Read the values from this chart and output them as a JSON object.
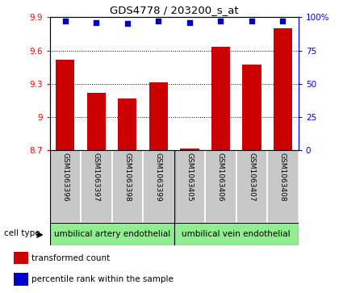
{
  "title": "GDS4778 / 203200_s_at",
  "samples": [
    "GSM1063396",
    "GSM1063397",
    "GSM1063398",
    "GSM1063399",
    "GSM1063405",
    "GSM1063406",
    "GSM1063407",
    "GSM1063408"
  ],
  "bar_values": [
    9.52,
    9.22,
    9.17,
    9.31,
    8.72,
    9.63,
    9.47,
    9.8
  ],
  "percentile_values": [
    97,
    96,
    95.5,
    97,
    96,
    97,
    97,
    97
  ],
  "bar_color": "#cc0000",
  "dot_color": "#0000cc",
  "ylim_left": [
    8.7,
    9.9
  ],
  "ylim_right": [
    0,
    100
  ],
  "yticks_left": [
    8.7,
    9.0,
    9.3,
    9.6,
    9.9
  ],
  "yticks_right": [
    0,
    25,
    50,
    75,
    100
  ],
  "ytick_labels_right": [
    "0",
    "25",
    "50",
    "75",
    "100%"
  ],
  "group1_label": "umbilical artery endothelial",
  "group2_label": "umbilical vein endothelial",
  "cell_type_label": "cell type",
  "legend_bar_label": "transformed count",
  "legend_dot_label": "percentile rank within the sample",
  "bar_width": 0.6,
  "group_box_color": "#90ee90",
  "sample_box_color": "#c8c8c8",
  "bar_color_hex": "#cc0000",
  "dot_color_hex": "#0000cc"
}
